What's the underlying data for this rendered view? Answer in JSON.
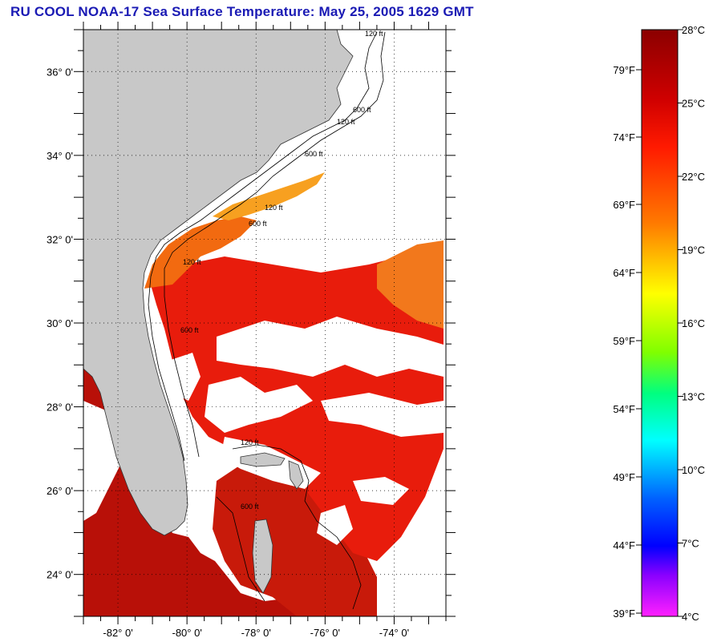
{
  "title": "RU COOL  NOAA-17  Sea Surface Temperature:  May 25, 2005 1629 GMT",
  "map": {
    "lon_range": [
      -83,
      -72.5
    ],
    "lat_range": [
      23,
      37
    ],
    "lat_ticks": [
      {
        "value": 36,
        "label": "36° 0'"
      },
      {
        "value": 34,
        "label": "34° 0'"
      },
      {
        "value": 32,
        "label": "32° 0'"
      },
      {
        "value": 30,
        "label": "30° 0'"
      },
      {
        "value": 28,
        "label": "28° 0'"
      },
      {
        "value": 26,
        "label": "26° 0'"
      },
      {
        "value": 24,
        "label": "24° 0'"
      }
    ],
    "lon_ticks": [
      {
        "value": -82,
        "label": "-82° 0'"
      },
      {
        "value": -80,
        "label": "-80° 0'"
      },
      {
        "value": -78,
        "label": "-78° 0'"
      },
      {
        "value": -76,
        "label": "-76° 0'"
      },
      {
        "value": -74,
        "label": "-74° 0'"
      }
    ],
    "grid": "dotted",
    "colors": {
      "land": "#c8c8c8",
      "gulf_stream": "#e81c0c",
      "shelf_warm": "#f26a10",
      "shelf_north": "#f7a020",
      "cloud": "#ffffff",
      "gulf_of_mexico": "#b81008"
    },
    "contour_labels": [
      {
        "text": "120 ft"
      },
      {
        "text": "600 ft"
      },
      {
        "text": "120 ft"
      },
      {
        "text": "600 ft"
      },
      {
        "text": "120 ft"
      },
      {
        "text": "600 ft"
      },
      {
        "text": "120 ft"
      },
      {
        "text": "600 ft"
      },
      {
        "text": "120 ft"
      },
      {
        "text": "600 ft"
      }
    ]
  },
  "colorbar": {
    "colors": {
      "top": "#8b0000",
      "stops": [
        "#8b0000",
        "#ff0000",
        "#ff7000",
        "#ffff00",
        "#00ff00",
        "#00ffff",
        "#0060ff",
        "#0000ff",
        "#8000ff",
        "#ff00ff"
      ]
    },
    "celsius_labels": [
      "28°C",
      "25°C",
      "22°C",
      "19°C",
      "16°C",
      "13°C",
      "10°C",
      "7°C",
      "4°C"
    ],
    "fahrenheit_labels": [
      "79°F",
      "74°F",
      "69°F",
      "64°F",
      "59°F",
      "54°F",
      "49°F",
      "44°F",
      "39°F"
    ]
  }
}
